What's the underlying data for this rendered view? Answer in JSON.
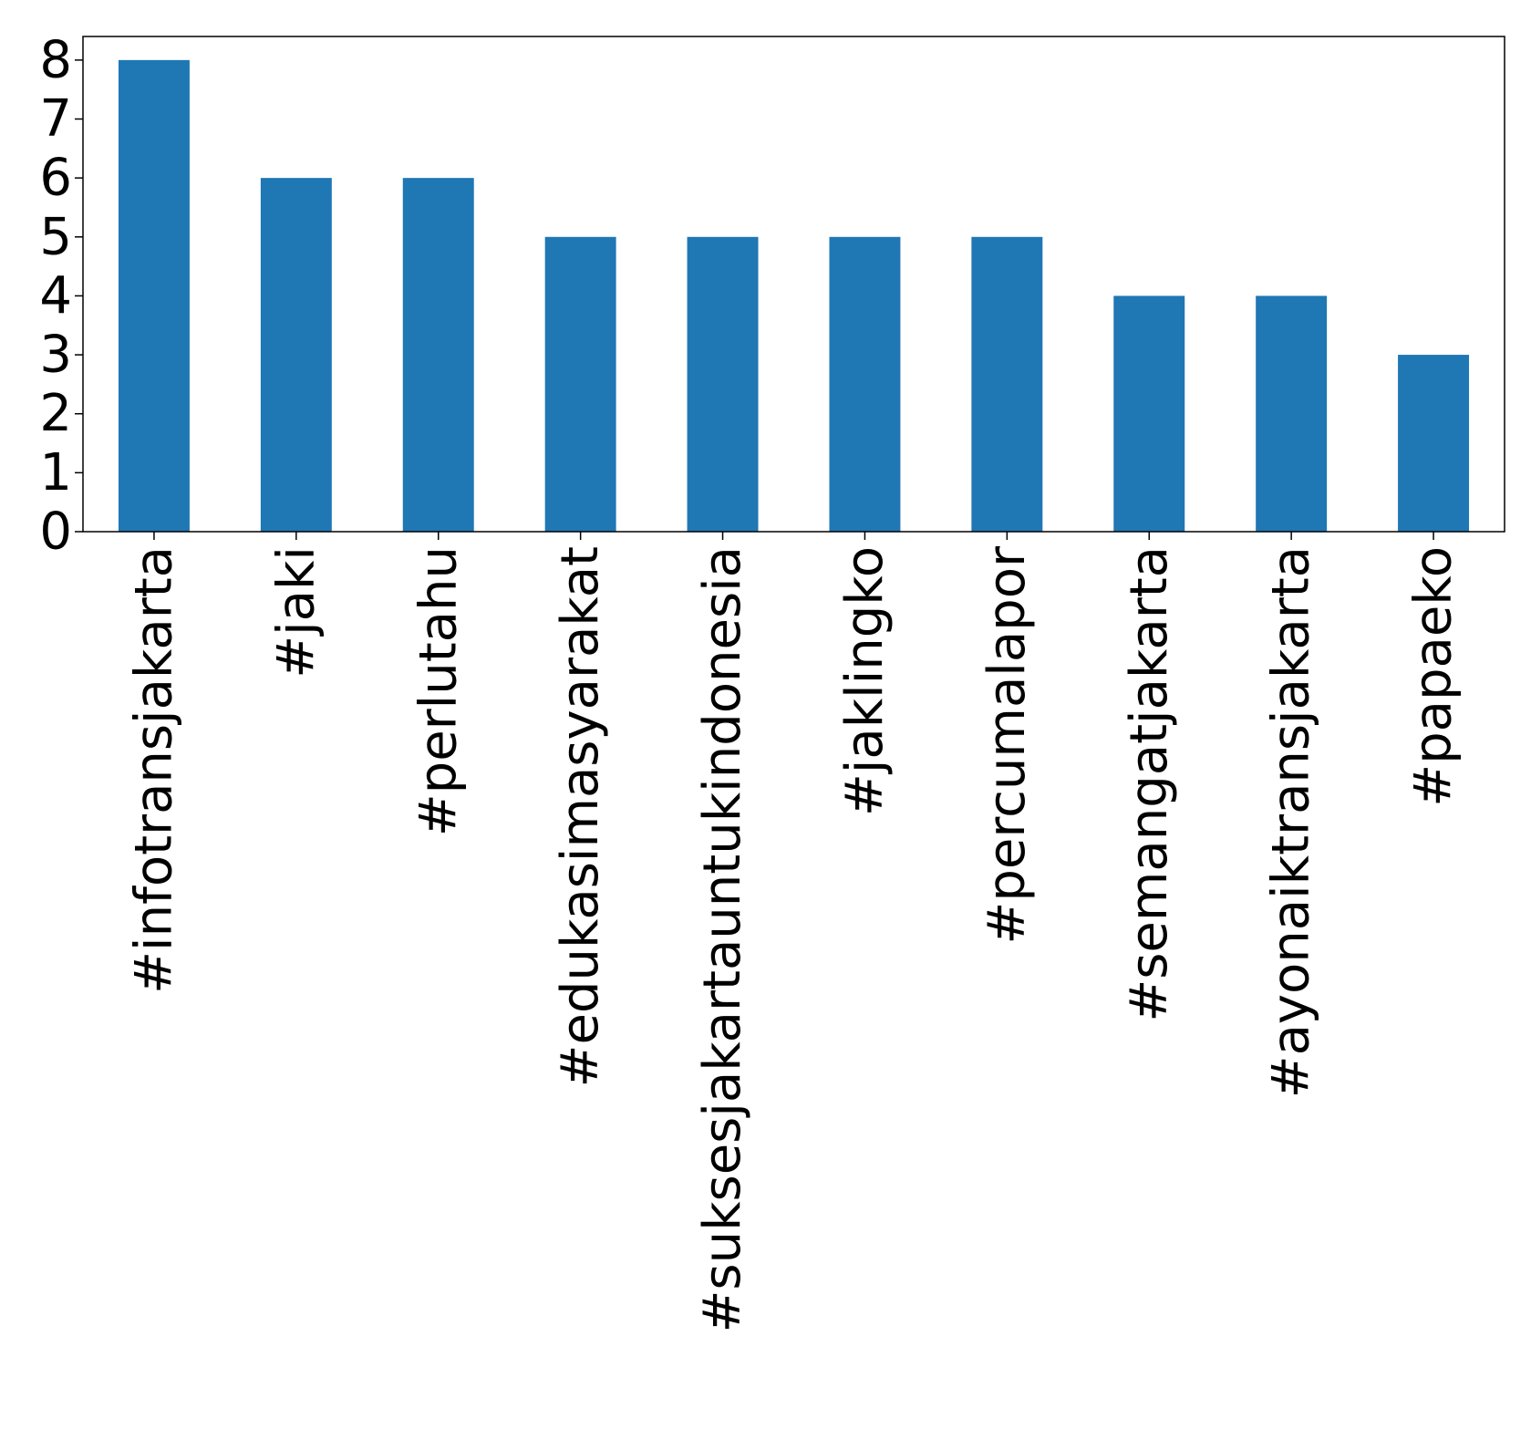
{
  "chart_data": {
    "type": "bar",
    "categories": [
      "#infotransjakarta",
      "#jaki",
      "#perlutahu",
      "#edukasimasyarakat",
      "#suksesjakartauntukindonesia",
      "#jaklingko",
      "#percumalapor",
      "#semangatjakarta",
      "#ayonaiktransjakarta",
      "#papaeko"
    ],
    "values": [
      8,
      6,
      6,
      5,
      5,
      5,
      5,
      4,
      4,
      3
    ],
    "title": "",
    "xlabel": "",
    "ylabel": "",
    "ylim": [
      0,
      8.4
    ],
    "yticks": [
      0,
      1,
      2,
      3,
      4,
      5,
      6,
      7,
      8
    ],
    "grid": false,
    "legend": "none",
    "bar_color": "#1f77b4",
    "x_tick_rotation": "vertical"
  }
}
